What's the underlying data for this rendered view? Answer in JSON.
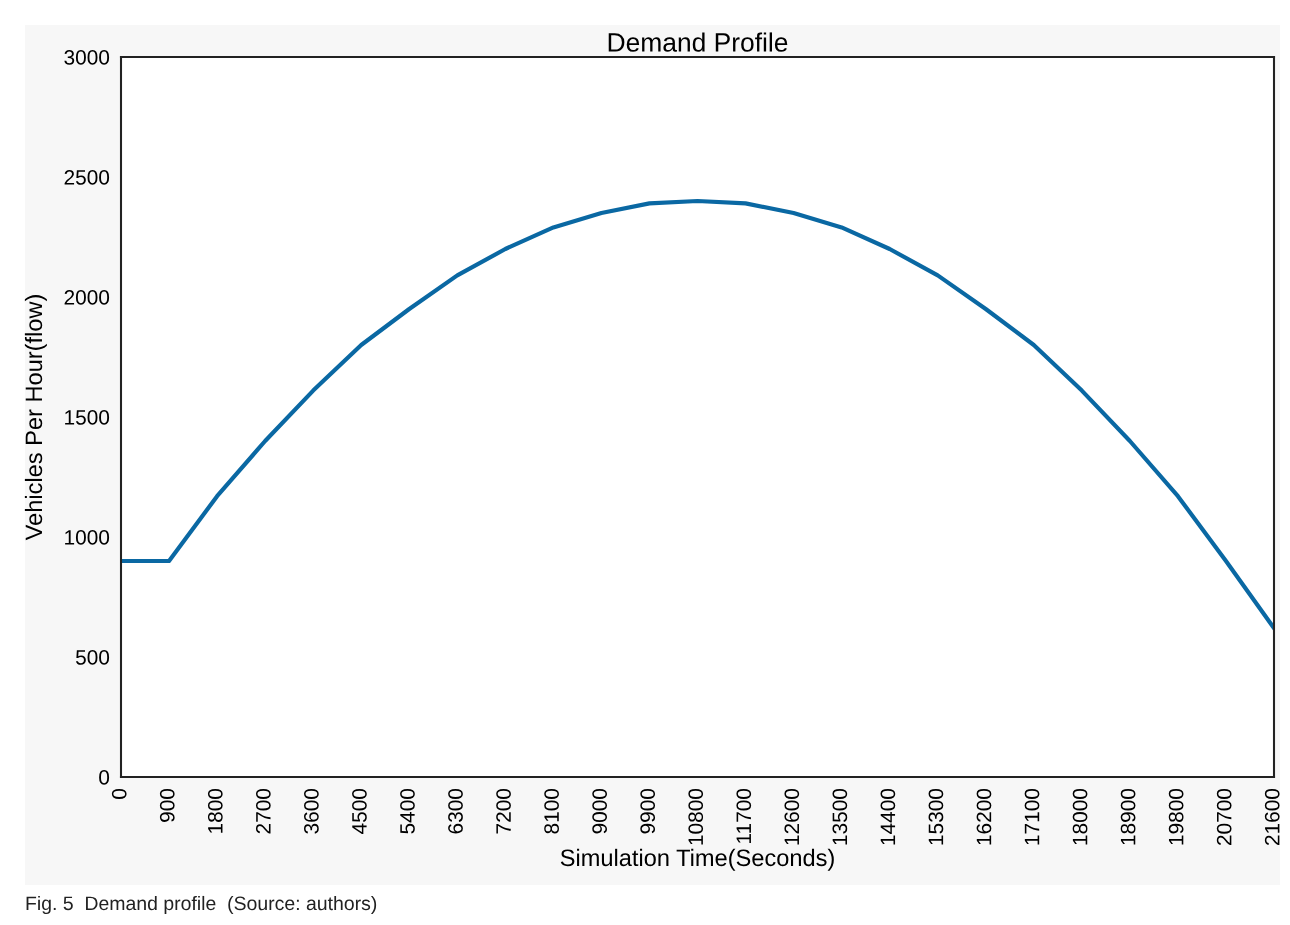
{
  "chart_data": {
    "type": "line",
    "title": "Demand Profile",
    "xlabel": "Simulation Time(Seconds)",
    "ylabel": "Vehicles Per Hour(flow)",
    "x": [
      0,
      900,
      1800,
      2700,
      3600,
      4500,
      5400,
      6300,
      7200,
      8100,
      9000,
      9900,
      10800,
      11700,
      12600,
      13500,
      14400,
      15300,
      16200,
      17100,
      18000,
      18900,
      19800,
      20700,
      21600
    ],
    "series": [
      {
        "color": "#0a68a3",
        "values": [
          900,
          900,
          1170,
          1400,
          1610,
          1800,
          1950,
          2090,
          2200,
          2290,
          2350,
          2390,
          2400,
          2390,
          2350,
          2290,
          2200,
          2090,
          1950,
          1800,
          1610,
          1400,
          1170,
          900,
          620
        ]
      }
    ],
    "xlim": [
      0,
      21600
    ],
    "xticks": [
      0,
      900,
      1800,
      2700,
      3600,
      4500,
      5400,
      6300,
      7200,
      8100,
      9000,
      9900,
      10800,
      11700,
      12600,
      13500,
      14400,
      15300,
      16200,
      17100,
      18000,
      18900,
      19800,
      20700,
      21600
    ],
    "ylim": [
      0,
      3000
    ],
    "yticks": [
      0,
      500,
      1000,
      1500,
      2000,
      2500,
      3000
    ],
    "grid": false,
    "marker": "none",
    "line_style": "solid",
    "annotations": [
      "Fig. 5  Demand profile  (Source: authors)"
    ]
  }
}
